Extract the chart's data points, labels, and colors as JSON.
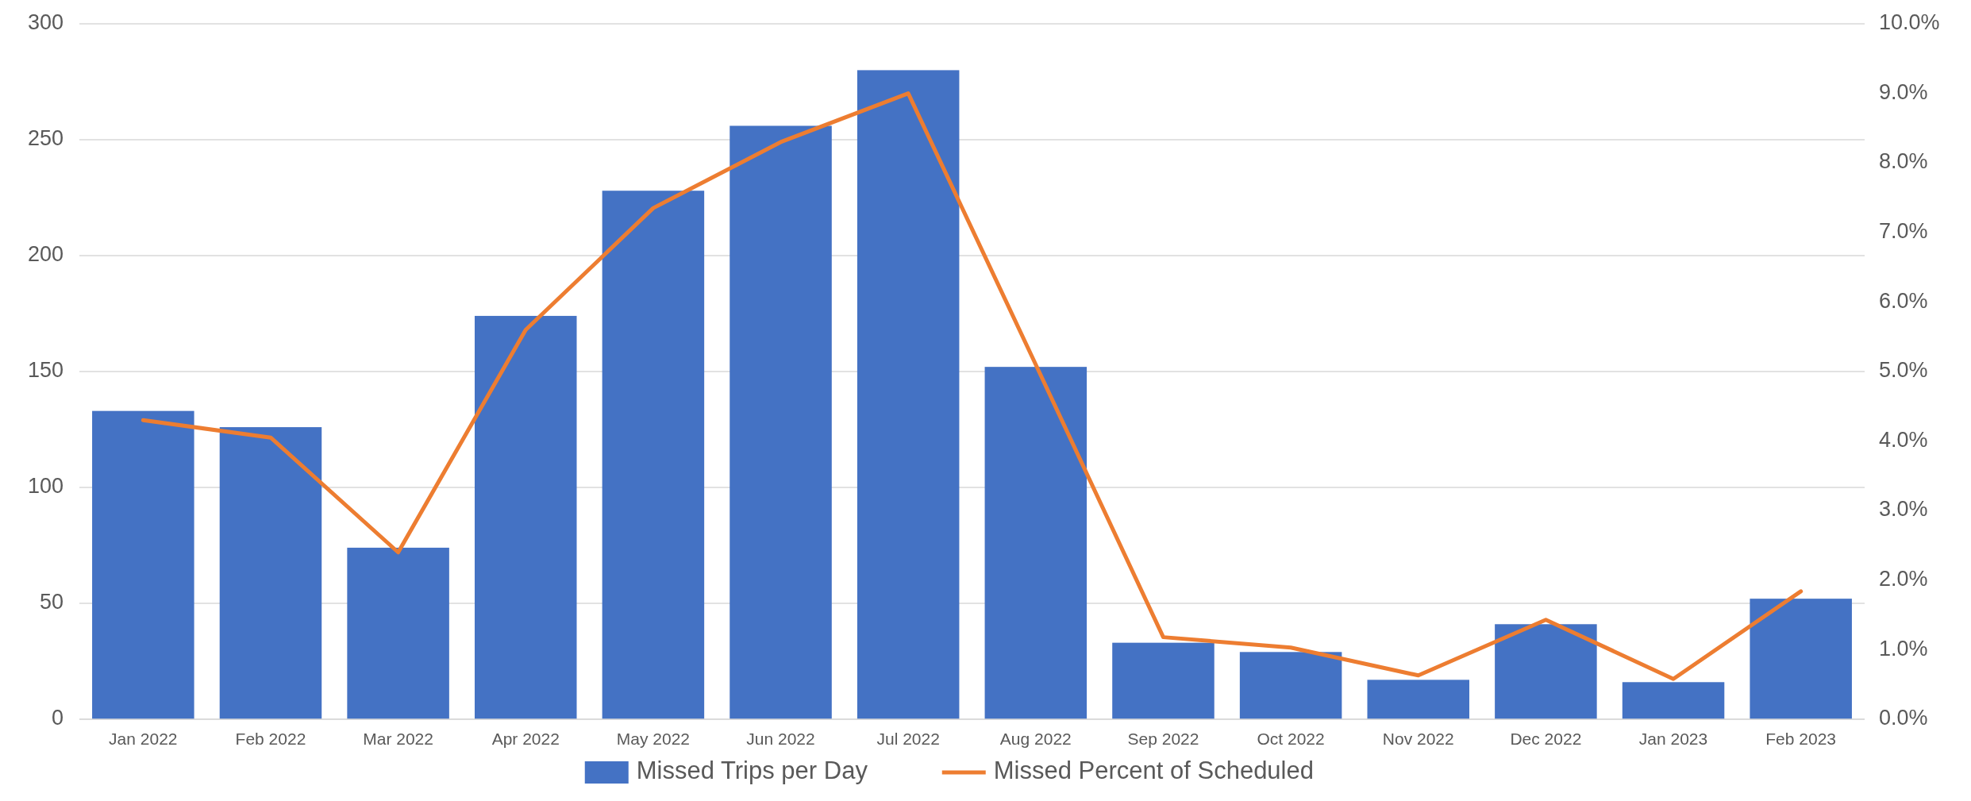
{
  "chart_data": {
    "type": "bar",
    "categories": [
      "Jan 2022",
      "Feb 2022",
      "Mar 2022",
      "Apr 2022",
      "May 2022",
      "Jun 2022",
      "Jul 2022",
      "Aug 2022",
      "Sep 2022",
      "Oct 2022",
      "Nov 2022",
      "Dec 2022",
      "Jan 2023",
      "Feb 2023"
    ],
    "series": [
      {
        "name": "Missed Trips per Day",
        "color": "#4472c4",
        "values": [
          133,
          126,
          74,
          174,
          228,
          256,
          280,
          152,
          33,
          29,
          17,
          41,
          16,
          52
        ]
      },
      {
        "name": "Missed Percent of Scheduled",
        "color": "#ed7d31",
        "type": "line",
        "axis": "y2",
        "values": [
          4.3,
          4.05,
          2.4,
          5.6,
          7.35,
          8.3,
          9.0,
          5.1,
          1.18,
          1.03,
          0.63,
          1.43,
          0.58,
          1.84
        ]
      }
    ],
    "ylim": [
      0,
      300
    ],
    "yticks": [
      0,
      50,
      100,
      150,
      200,
      250,
      300
    ],
    "y2lim": [
      0,
      10
    ],
    "y2ticks": [
      {
        "value": 0,
        "label": "0.0%"
      },
      {
        "value": 1,
        "label": "1.0%"
      },
      {
        "value": 2,
        "label": "2.0%"
      },
      {
        "value": 3,
        "label": "3.0%"
      },
      {
        "value": 4,
        "label": "4.0%"
      },
      {
        "value": 5,
        "label": "5.0%"
      },
      {
        "value": 6,
        "label": "6.0%"
      },
      {
        "value": 7,
        "label": "7.0%"
      },
      {
        "value": 8,
        "label": "8.0%"
      },
      {
        "value": 9,
        "label": "9.0%"
      },
      {
        "value": 10,
        "label": "10.0%"
      }
    ],
    "grid": "y",
    "legend": "bottom",
    "marker": "none",
    "line_style": "solid"
  }
}
